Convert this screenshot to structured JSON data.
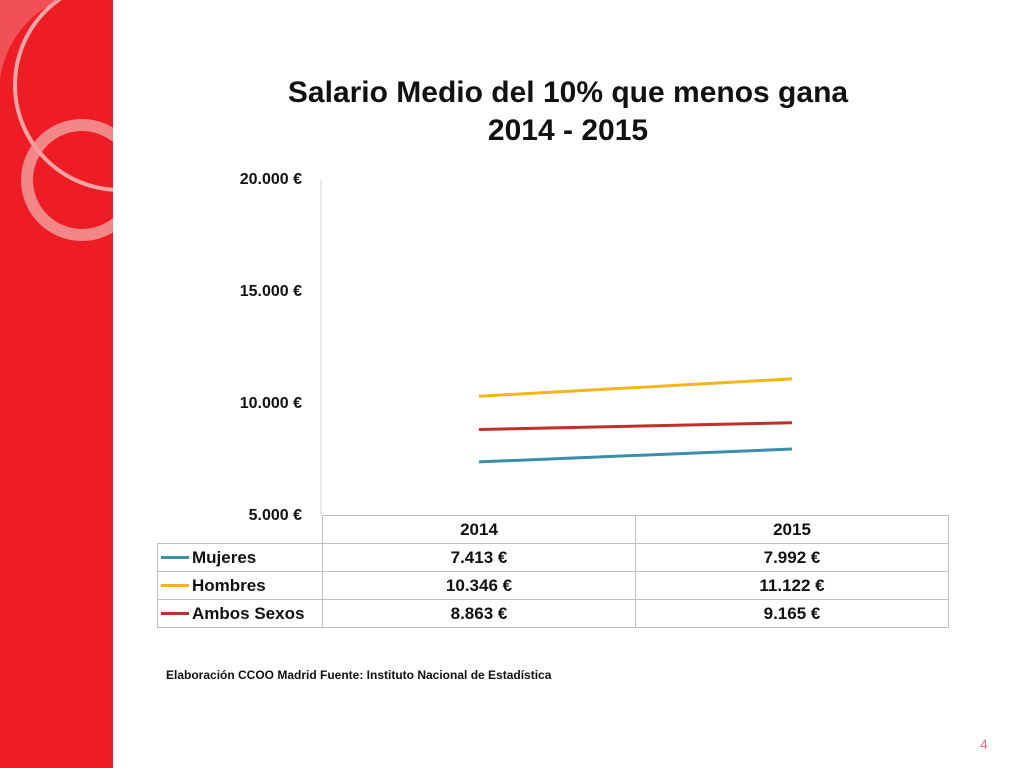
{
  "slide": {
    "page_number": "4"
  },
  "source_note": "Elaboración CCOO Madrid Fuente: Instituto Nacional de Estadística",
  "colors": {
    "sidebar": "#ee1c25",
    "mujeres": "#3a8fa8",
    "hombres": "#f2b51c",
    "ambos": "#c0302b"
  },
  "chart_data": {
    "type": "line",
    "title": [
      "Salario Medio del 10% que menos gana",
      "2014 - 2015"
    ],
    "ylim": [
      5000,
      20000
    ],
    "yticks": [
      {
        "value": 20000,
        "label": "20.000 €"
      },
      {
        "value": 15000,
        "label": "15.000 €"
      },
      {
        "value": 10000,
        "label": "10.000 €"
      },
      {
        "value": 5000,
        "label": "5.000 €"
      }
    ],
    "categories": [
      "2014",
      "2015"
    ],
    "grid": false,
    "legend": "table-below",
    "series": [
      {
        "name": "Mujeres",
        "values": [
          7413,
          7992
        ],
        "labels": [
          "7.413 €",
          "7.992 €"
        ],
        "color": "#3a8fa8"
      },
      {
        "name": "Hombres",
        "values": [
          10346,
          11122
        ],
        "labels": [
          "10.346 €",
          "11.122 €"
        ],
        "color": "#f2b51c"
      },
      {
        "name": "Ambos Sexos",
        "values": [
          8863,
          9165
        ],
        "labels": [
          "8.863 €",
          "9.165 €"
        ],
        "color": "#c0302b"
      }
    ]
  }
}
